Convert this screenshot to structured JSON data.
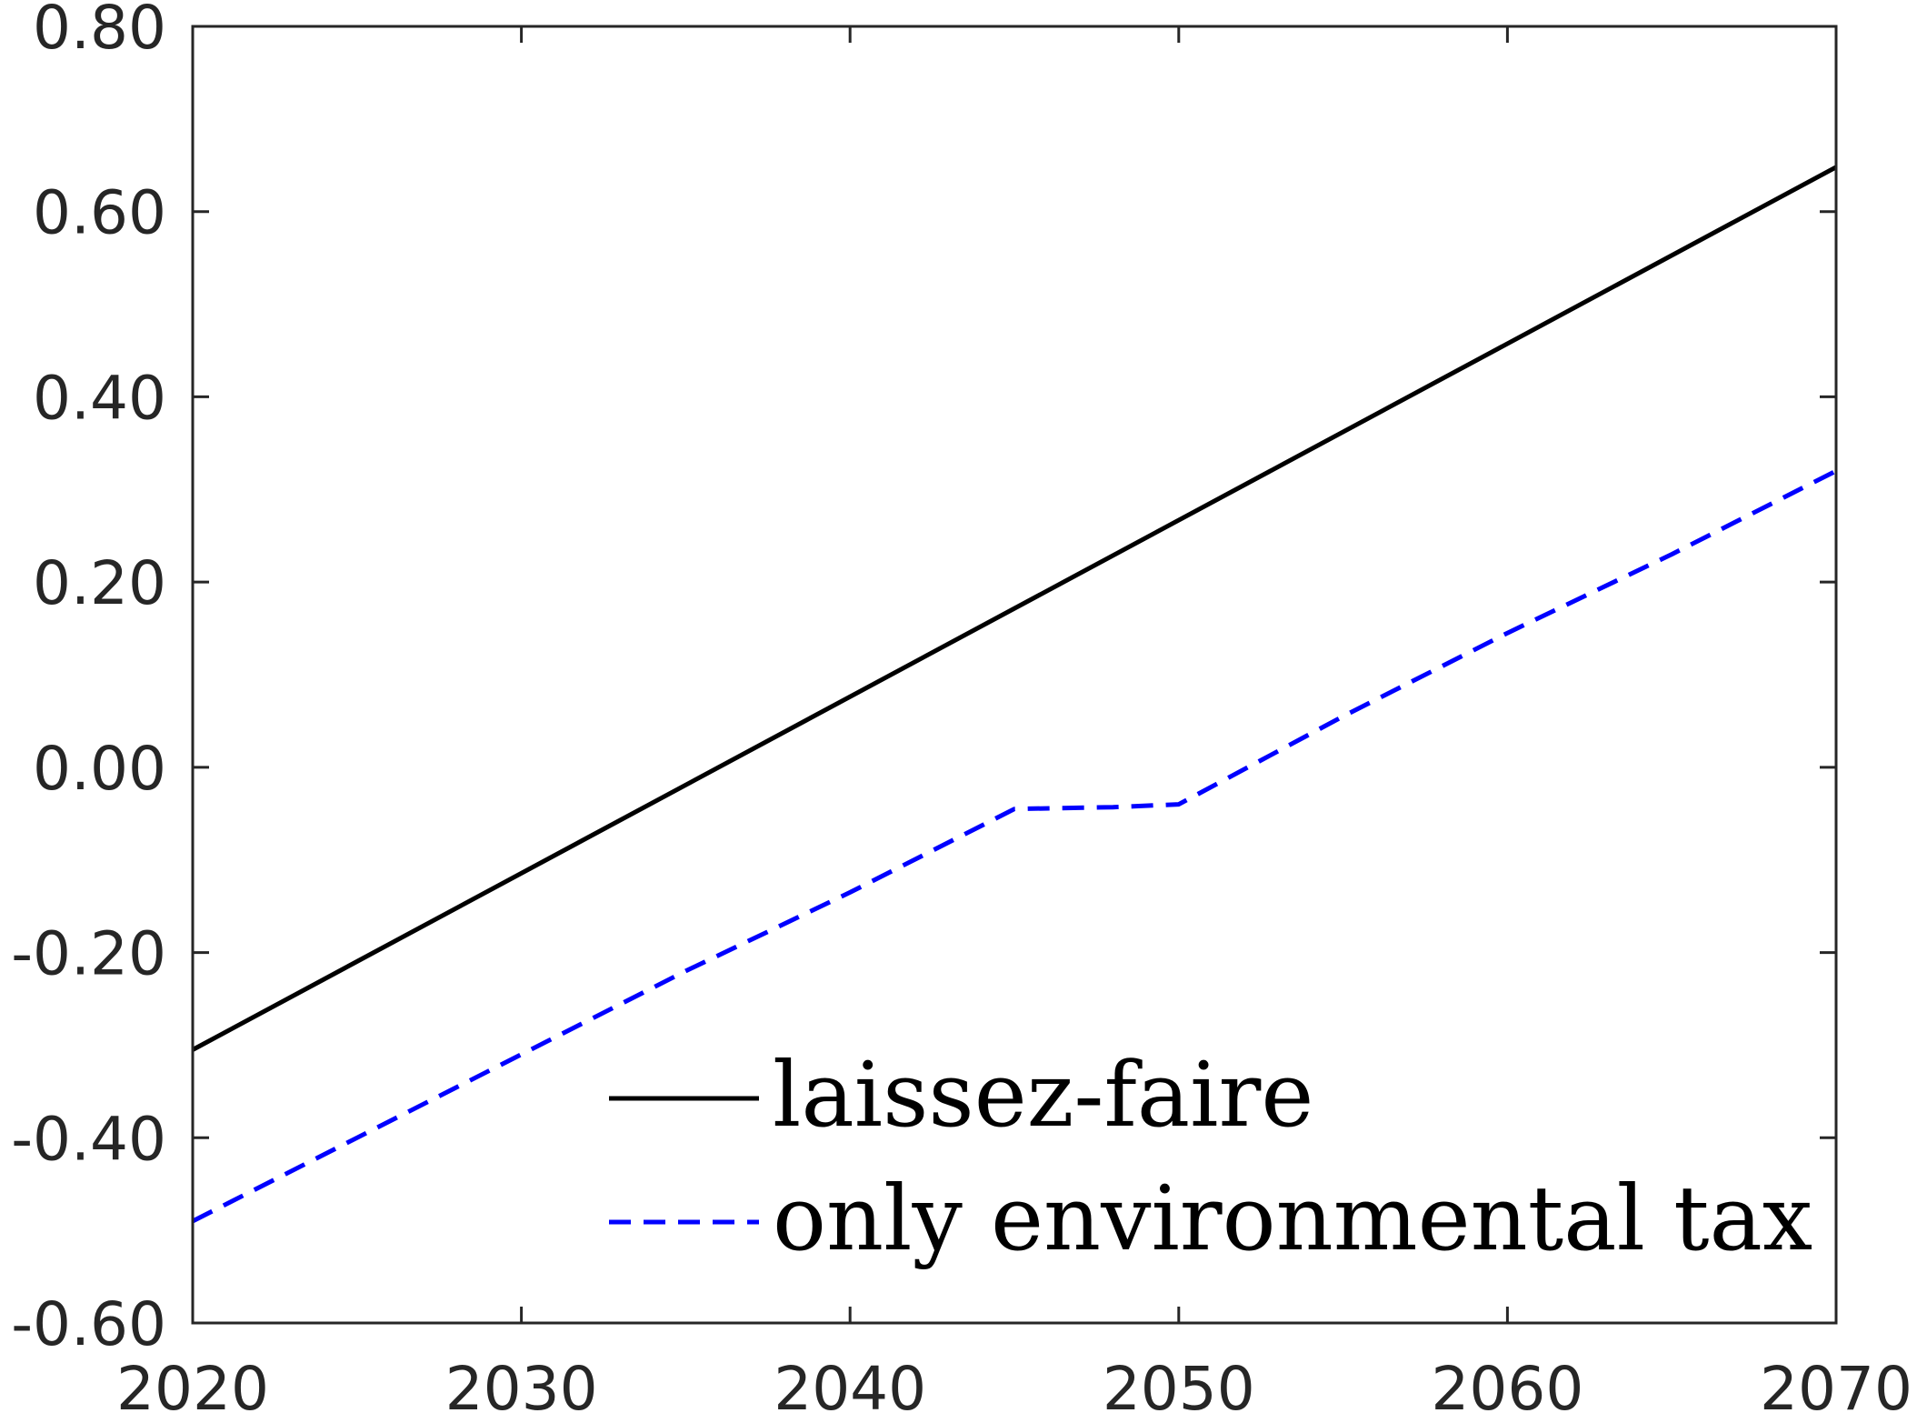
{
  "chart_data": {
    "type": "line",
    "title": "",
    "xlabel": "",
    "ylabel": "",
    "xlim": [
      2020,
      2070
    ],
    "ylim": [
      -0.6,
      0.8
    ],
    "x_ticks": [
      2020,
      2030,
      2040,
      2050,
      2060,
      2070
    ],
    "x_tick_labels": [
      "2020",
      "2030",
      "2040",
      "2050",
      "2060",
      "2070"
    ],
    "y_ticks": [
      0.8,
      0.6,
      0.4,
      0.2,
      0.0,
      -0.2,
      -0.4,
      -0.6
    ],
    "y_tick_labels": [
      "0.80",
      "0.60",
      "0.40",
      "0.20",
      "0.00",
      "-0.20",
      "-0.40",
      "-0.60"
    ],
    "grid": false,
    "legend_position": "bottom-right",
    "series": [
      {
        "name": "laissez-faire",
        "color": "#000000",
        "dash": "solid",
        "x": [
          2020,
          2070
        ],
        "y": [
          -0.305,
          0.648
        ]
      },
      {
        "name": "only environmental tax",
        "color": "#0000ff",
        "dash": "dashed",
        "x": [
          2020,
          2025,
          2030,
          2035,
          2040,
          2045,
          2048,
          2050,
          2055,
          2060,
          2065,
          2070
        ],
        "y": [
          -0.49,
          -0.4,
          -0.31,
          -0.22,
          -0.135,
          -0.045,
          -0.043,
          -0.04,
          0.055,
          0.145,
          0.23,
          0.32
        ]
      }
    ]
  }
}
